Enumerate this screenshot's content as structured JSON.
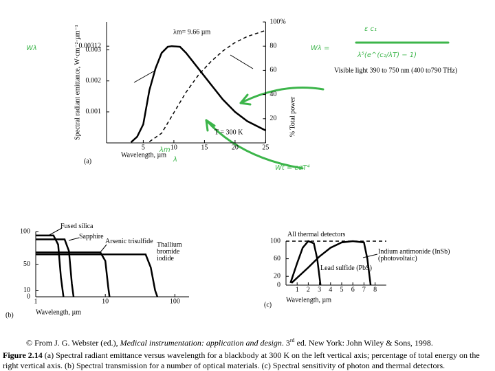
{
  "chart_data": [
    {
      "type": "line",
      "panel": "(a)",
      "xlabel": "Wavelength, µm",
      "ylabel": "Spectral radiant emittance, W·cm⁻²·µm⁻¹",
      "y2label": "% Total power",
      "annotations": [
        "λm= 9.66  µm",
        "T = 300 K",
        "Visible light 390 to 750 nm (400 to790 THz)"
      ],
      "xlim": [
        -1,
        25
      ],
      "xticks": [
        5,
        10,
        15,
        20,
        25
      ],
      "ylim": [
        0,
        0.0039
      ],
      "yticks": [
        0.001,
        0.002,
        0.003,
        0.00312
      ],
      "y2lim": [
        0,
        100
      ],
      "y2ticks": [
        20,
        40,
        60,
        80,
        {
          "value": 100,
          "label": "100%"
        }
      ],
      "series": [
        {
          "color": "#000000",
          "style": "solid",
          "x": [
            3,
            4,
            5,
            6,
            7,
            8,
            9,
            9.66,
            11,
            12,
            14,
            16,
            18,
            20,
            22,
            25
          ],
          "values": [
            2e-05,
            0.0002,
            0.0006,
            0.0017,
            0.0024,
            0.0029,
            0.0031,
            0.00312,
            0.0031,
            0.0029,
            0.0024,
            0.0019,
            0.0014,
            0.001,
            0.0007,
            0.0004
          ]
        },
        {
          "color": "#000000",
          "style": "dashed",
          "axis": "y2",
          "x": [
            6,
            8,
            10,
            12,
            14,
            16,
            18,
            20,
            22,
            25
          ],
          "values": [
            1,
            8,
            25,
            42,
            56,
            67,
            76,
            83,
            88,
            93
          ]
        }
      ]
    },
    {
      "type": "line",
      "panel": "(b)",
      "xlabel": "Wavelength, µm",
      "xscale": "log",
      "xlim": [
        1,
        160
      ],
      "xticks": [
        1,
        10,
        100
      ],
      "ylim": [
        0,
        100
      ],
      "yticks": [
        0,
        10,
        50,
        100
      ],
      "series": [
        {
          "name": "Fused silica",
          "color": "#000000",
          "style": "solid",
          "x": [
            1,
            1.8,
            2.1,
            2.3,
            2.5
          ],
          "values": [
            94,
            94,
            80,
            30,
            0
          ]
        },
        {
          "name": "Sapphire",
          "color": "#000000",
          "style": "solid",
          "x": [
            1,
            2.6,
            3,
            3.3,
            3.5
          ],
          "values": [
            88,
            88,
            70,
            20,
            0
          ]
        },
        {
          "name": "Arsenic trisulfide",
          "color": "#000000",
          "style": "solid",
          "x": [
            1,
            8.5,
            10,
            11,
            11.5
          ],
          "values": [
            68,
            68,
            55,
            15,
            0
          ]
        },
        {
          "name": "Thallium bromide iodide",
          "color": "#000000",
          "style": "solid",
          "x": [
            1,
            38,
            45,
            52,
            56
          ],
          "values": [
            65,
            65,
            45,
            10,
            0
          ]
        }
      ]
    },
    {
      "type": "line",
      "panel": "(c)",
      "xlabel": "Wavelength, µm",
      "xlim": [
        0,
        9
      ],
      "xticks": [
        1,
        2,
        3,
        4,
        5,
        6,
        7,
        8
      ],
      "ylim": [
        0,
        100
      ],
      "yticks": [
        0,
        20,
        60,
        100
      ],
      "series": [
        {
          "name": "All thermal detectors",
          "color": "#000000",
          "style": "dashed",
          "x": [
            0,
            9
          ],
          "values": [
            100,
            100
          ]
        },
        {
          "name": "Indium antimonide (InSb) (photovoltaic)",
          "color": "#000000",
          "style": "solid",
          "x": [
            0.5,
            2,
            3,
            4,
            5,
            6,
            7,
            7.3,
            7.6
          ],
          "values": [
            5,
            40,
            65,
            85,
            97,
            100,
            97,
            60,
            0
          ]
        },
        {
          "name": "Lead sulfide (PbS)",
          "color": "#000000",
          "style": "solid",
          "x": [
            0.4,
            1,
            1.5,
            2,
            2.5,
            2.8,
            3.1
          ],
          "values": [
            5,
            50,
            85,
            100,
            95,
            60,
            0
          ]
        }
      ]
    }
  ],
  "handwriting": [
    "Wλ",
    "Wλ =",
    "ε   c₁",
    "λ⁵(e^(c₂/λT) − 1)",
    "λm",
    "λ",
    "Wt = εσT⁴"
  ],
  "credit": [
    "© From J. G. Webster (ed.), ",
    "Medical instrumentation: application and design",
    ". 3",
    "rd",
    " ed. New York: John Wiley & Sons, 1998."
  ],
  "figure_label": "Figure 2.14",
  "caption": "(a) Spectral radiant emittance versus wavelength for a blackbody at 300 K on the left vertical axis; percentage of total energy on the right vertical axis. (b) Spectral transmission for a number of optical materials. (c) Spectral sensitivity of photon and thermal detectors."
}
